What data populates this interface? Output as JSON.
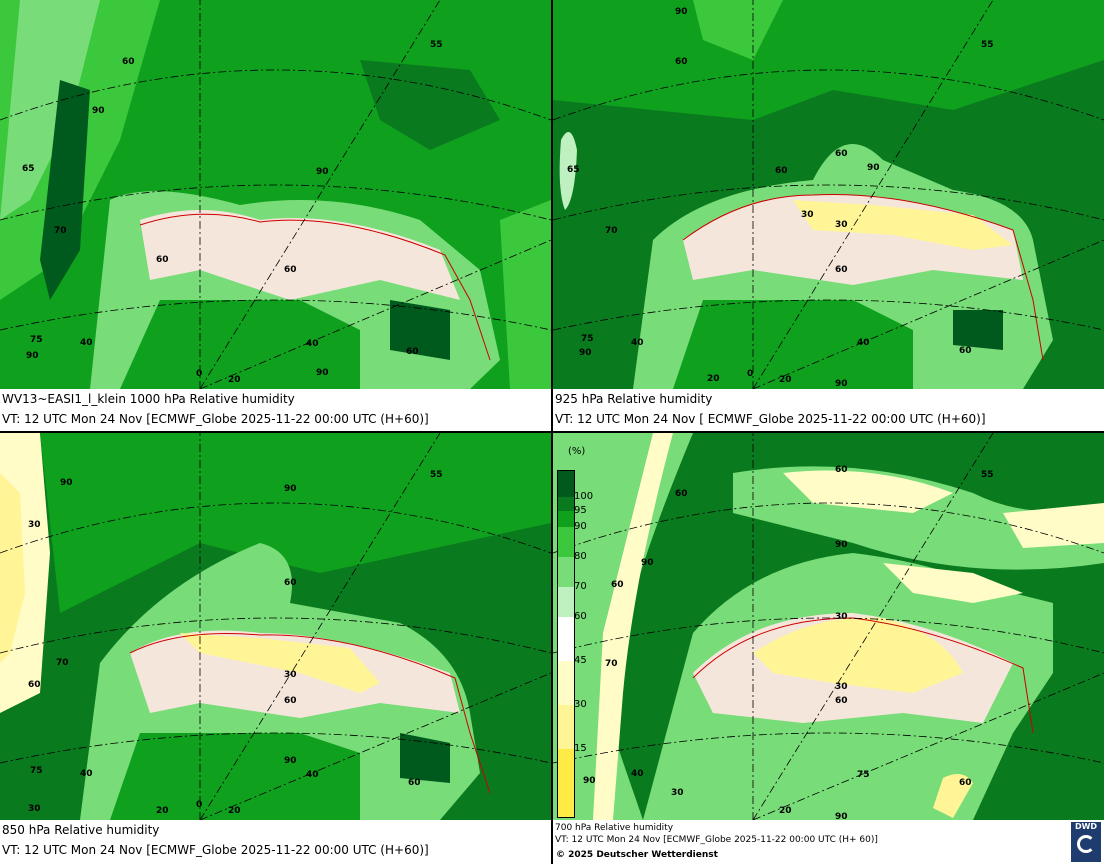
{
  "panels": [
    {
      "id": "1000hPa",
      "caption_line1": "WV13~EASI1_l_klein 1000 hPa Relative humidity",
      "caption_line2": "VT: 12 UTC Mon  24 Nov [ECMWF_Globe 2025-11-22 00:00 UTC  (H+60)]",
      "labels": [
        "60",
        "90",
        "65",
        "70",
        "90",
        "60",
        "60",
        "55",
        "75",
        "90",
        "40",
        "0",
        "20",
        "40",
        "90",
        "60"
      ]
    },
    {
      "id": "925hPa",
      "caption_line1": "925 hPa Relative humidity",
      "caption_line2": "VT: 12 UTC Mon  24 Nov [ ECMWF_Globe 2025-11-22 00:00 UTC (H+60)]",
      "labels": [
        "90",
        "60",
        "65",
        "70",
        "60",
        "90",
        "60",
        "30",
        "30",
        "60",
        "55",
        "75",
        "90",
        "40",
        "20",
        "0",
        "20",
        "40",
        "60",
        "90"
      ]
    },
    {
      "id": "850hPa",
      "caption_line1": "850 hPa  Relative humidity",
      "caption_line2": "VT: 12 UTC Mon  24 Nov [ECMWF_Globe 2025-11-22 00:00 UTC  (H+60)]",
      "labels": [
        "90",
        "30",
        "90",
        "55",
        "60",
        "70",
        "60",
        "30",
        "60",
        "75",
        "40",
        "90",
        "40",
        "60",
        "30",
        "20",
        "0",
        "20"
      ]
    },
    {
      "id": "700hPa",
      "caption_line1": "700 hPa Relative humidity",
      "caption_line2": "VT: 12 UTC Mon  24 Nov [ECMWF_Globe 2025-11-22 00:00 UTC  (H+ 60)]",
      "labels": [
        "60",
        "60",
        "55",
        "90",
        "90",
        "60",
        "30",
        "70",
        "30",
        "60",
        "90",
        "40",
        "20",
        "90",
        "75",
        "60",
        "30"
      ]
    }
  ],
  "legend": {
    "unit": "(%)",
    "ticks": [
      "100",
      "95",
      "90",
      "80",
      "70",
      "60",
      "45",
      "30",
      "15"
    ],
    "colors": [
      "#005a1e",
      "#0a7a1e",
      "#0fa01e",
      "#3cc83c",
      "#78dc78",
      "#bff0c0",
      "#ffffff",
      "#fffcc8",
      "#fff596",
      "#ffeb46"
    ]
  },
  "copyright": "© 2025 Deutscher Wetterdienst",
  "logo_text": "DWD",
  "colors": {
    "very_moist": "#005a1e",
    "moist": "#0fa01e",
    "medium": "#3cc83c",
    "light": "#bff0c0",
    "dry_pink": "#f5e6dc",
    "dry_yellow": "#fff596",
    "coast": "#cc0000"
  }
}
